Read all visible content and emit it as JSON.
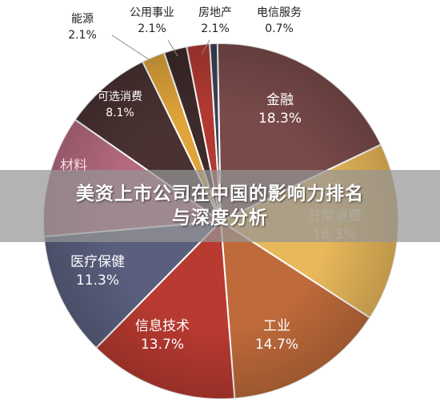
{
  "banner": {
    "line1": "美资上市公司在中国的影响力排名",
    "line2": "与深度分析"
  },
  "chart_data": {
    "type": "pie",
    "title": "",
    "slices": [
      {
        "label": "金融",
        "value": 18.3,
        "display": "18.3%",
        "color": "#7a4a4a"
      },
      {
        "label": "日常消费",
        "value": 16.3,
        "display": "16.3%",
        "color": "#e8b85a"
      },
      {
        "label": "工业",
        "value": 14.7,
        "display": "14.7%",
        "color": "#bf6a3a"
      },
      {
        "label": "信息技术",
        "value": 13.7,
        "display": "13.7%",
        "color": "#b83a30"
      },
      {
        "label": "医疗保健",
        "value": 11.3,
        "display": "11.3%",
        "color": "#5a5f7e"
      },
      {
        "label": "材料",
        "value": 11.1,
        "display": "",
        "color": "#b66a80"
      },
      {
        "label": "可选消费",
        "value": 8.1,
        "display": "8.1%",
        "color": "#4a3232"
      },
      {
        "label": "能源",
        "value": 2.1,
        "display": "2.1%",
        "color": "#e0a53a"
      },
      {
        "label": "公用事业",
        "value": 2.1,
        "display": "2.1%",
        "color": "#3e2a2a"
      },
      {
        "label": "房地产",
        "value": 2.1,
        "display": "2.1%",
        "color": "#b23a32"
      },
      {
        "label": "电信服务",
        "value": 0.7,
        "display": "0.7%",
        "color": "#3a4256"
      }
    ]
  }
}
